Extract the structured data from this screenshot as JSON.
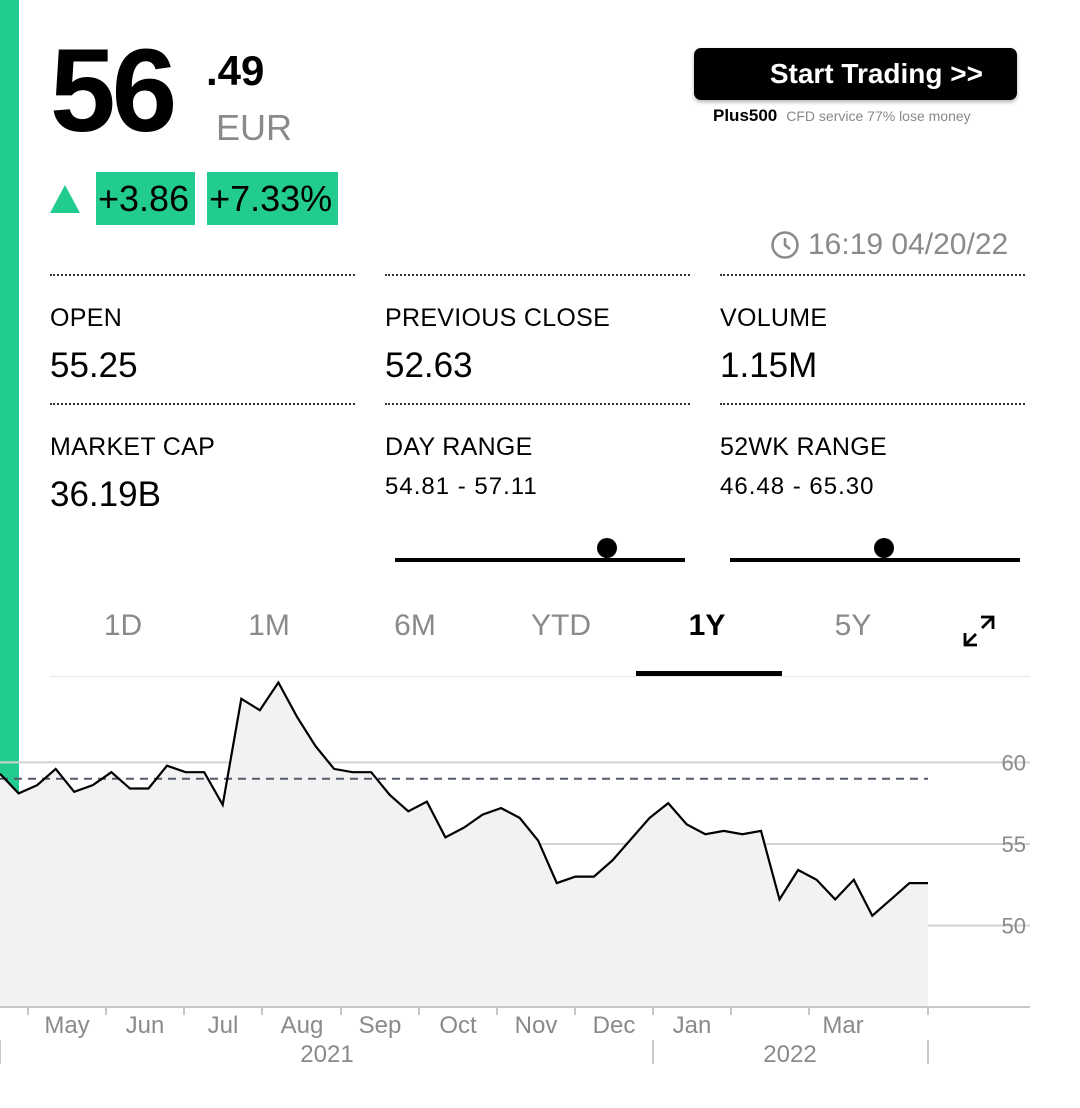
{
  "quote": {
    "price_int": "56",
    "price_dec": ".49",
    "currency": "EUR",
    "change": "+3.86",
    "change_pct": "+7.33%",
    "timestamp": "16:19 04/20/22"
  },
  "ad": {
    "button_label": "Start Trading  >>",
    "brand": "Plus500",
    "disclaimer": "CFD service 77% lose money"
  },
  "stats": {
    "open": {
      "label": "OPEN",
      "value": "55.25"
    },
    "prev_close": {
      "label": "PREVIOUS CLOSE",
      "value": "52.63"
    },
    "volume": {
      "label": "VOLUME",
      "value": "1.15M"
    },
    "market_cap": {
      "label": "MARKET CAP",
      "value": "36.19B"
    },
    "day_range": {
      "label": "DAY RANGE",
      "value": "54.81 - 57.11",
      "position": 0.73
    },
    "wk52_range": {
      "label": "52WK RANGE",
      "value": "46.48 - 65.30",
      "position": 0.53
    }
  },
  "tabs": [
    {
      "label": "1D"
    },
    {
      "label": "1M"
    },
    {
      "label": "6M"
    },
    {
      "label": "YTD"
    },
    {
      "label": "1Y"
    },
    {
      "label": "5Y"
    }
  ],
  "active_tab": "1Y",
  "colors": {
    "accent": "#22cc8f"
  },
  "icons": [
    "up-triangle-icon",
    "clock-icon",
    "expand-icon"
  ],
  "chart_data": {
    "type": "area",
    "ylim": [
      45,
      65.3
    ],
    "y_ticks": [
      "60",
      "55",
      "50"
    ],
    "x_months": [
      "May",
      "Jun",
      "Jul",
      "Aug",
      "Sep",
      "Oct",
      "Nov",
      "Dec",
      "Jan",
      "Mar"
    ],
    "x_years": [
      "2021",
      "2022"
    ],
    "previous_close": 59.0,
    "series_x": [
      0,
      2,
      4,
      6,
      8,
      10,
      12,
      14,
      16,
      18,
      20,
      22,
      24,
      26,
      28,
      30,
      32,
      34,
      36,
      38,
      40,
      42,
      44,
      46,
      48,
      50,
      52,
      54,
      56,
      58,
      60,
      62,
      64,
      66,
      68,
      70,
      72,
      74,
      76,
      78,
      80,
      82,
      84,
      86,
      88,
      90,
      92,
      94,
      96,
      98,
      100
    ],
    "series_y": [
      59.3,
      58.1,
      58.6,
      59.6,
      58.2,
      58.6,
      59.4,
      58.4,
      58.4,
      59.8,
      59.4,
      59.4,
      57.4,
      63.9,
      63.2,
      64.9,
      62.8,
      61.0,
      59.6,
      59.4,
      59.4,
      58.0,
      57.0,
      57.6,
      55.4,
      56.0,
      56.8,
      57.2,
      56.6,
      55.2,
      52.6,
      53.0,
      53.0,
      54.0,
      55.3,
      56.6,
      57.5,
      56.2,
      55.6,
      55.8,
      55.6,
      55.8,
      51.6,
      53.4,
      52.8,
      51.6,
      52.8,
      50.6,
      51.6,
      52.6,
      52.6
    ]
  }
}
